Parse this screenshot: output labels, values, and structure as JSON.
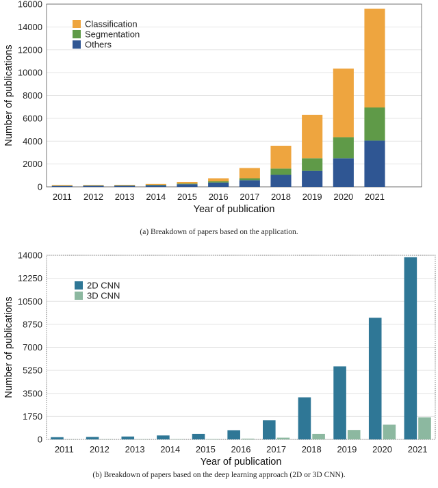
{
  "chart_data": [
    {
      "type": "bar",
      "stacked": true,
      "title": "",
      "xlabel": "Year of publication",
      "ylabel": "Number of publications",
      "ylim": [
        0,
        16000
      ],
      "yticks": [
        "0",
        "2000",
        "4000",
        "6000",
        "8000",
        "10000",
        "12000",
        "14000",
        "16000"
      ],
      "categories": [
        "2011",
        "2012",
        "2013",
        "2014",
        "2015",
        "2016",
        "2017",
        "2018",
        "2019",
        "2020",
        "2021"
      ],
      "series": [
        {
          "name": "Others",
          "color": "#2f5693",
          "values": [
            80,
            90,
            100,
            140,
            230,
            380,
            580,
            1050,
            1400,
            2500,
            4050
          ]
        },
        {
          "name": "Segmentation",
          "color": "#5f9a48",
          "values": [
            20,
            25,
            30,
            40,
            60,
            100,
            170,
            550,
            1100,
            1850,
            2900
          ]
        },
        {
          "name": "Classification",
          "color": "#eea53f",
          "values": [
            70,
            45,
            50,
            70,
            130,
            270,
            900,
            2000,
            3800,
            6000,
            8650
          ]
        }
      ],
      "legend_order": [
        "Classification",
        "Segmentation",
        "Others"
      ],
      "legend": "top-left",
      "caption": "(a) Breakdown of papers based on the application."
    },
    {
      "type": "bar",
      "stacked": false,
      "title": "",
      "xlabel": "Year of publication",
      "ylabel": "Number of publications",
      "ylim": [
        0,
        14000
      ],
      "yticks": [
        "0",
        "1750",
        "3500",
        "5250",
        "7000",
        "8750",
        "10500",
        "12250",
        "14000"
      ],
      "categories": [
        "2011",
        "2012",
        "2013",
        "2014",
        "2015",
        "2016",
        "2017",
        "2018",
        "2019",
        "2020",
        "2021"
      ],
      "series": [
        {
          "name": "2D CNN",
          "color": "#2f7796",
          "values": [
            170,
            190,
            220,
            300,
            420,
            700,
            1450,
            3200,
            5550,
            9250,
            13850
          ]
        },
        {
          "name": "3D CNN",
          "color": "#8cb8a0",
          "values": [
            10,
            15,
            20,
            25,
            30,
            60,
            130,
            420,
            720,
            1120,
            1680
          ]
        }
      ],
      "legend_order": [
        "2D CNN",
        "3D CNN"
      ],
      "legend": "top-left",
      "caption": "(b) Breakdown of papers based on the deep learning approach (2D or 3D CNN)."
    }
  ]
}
